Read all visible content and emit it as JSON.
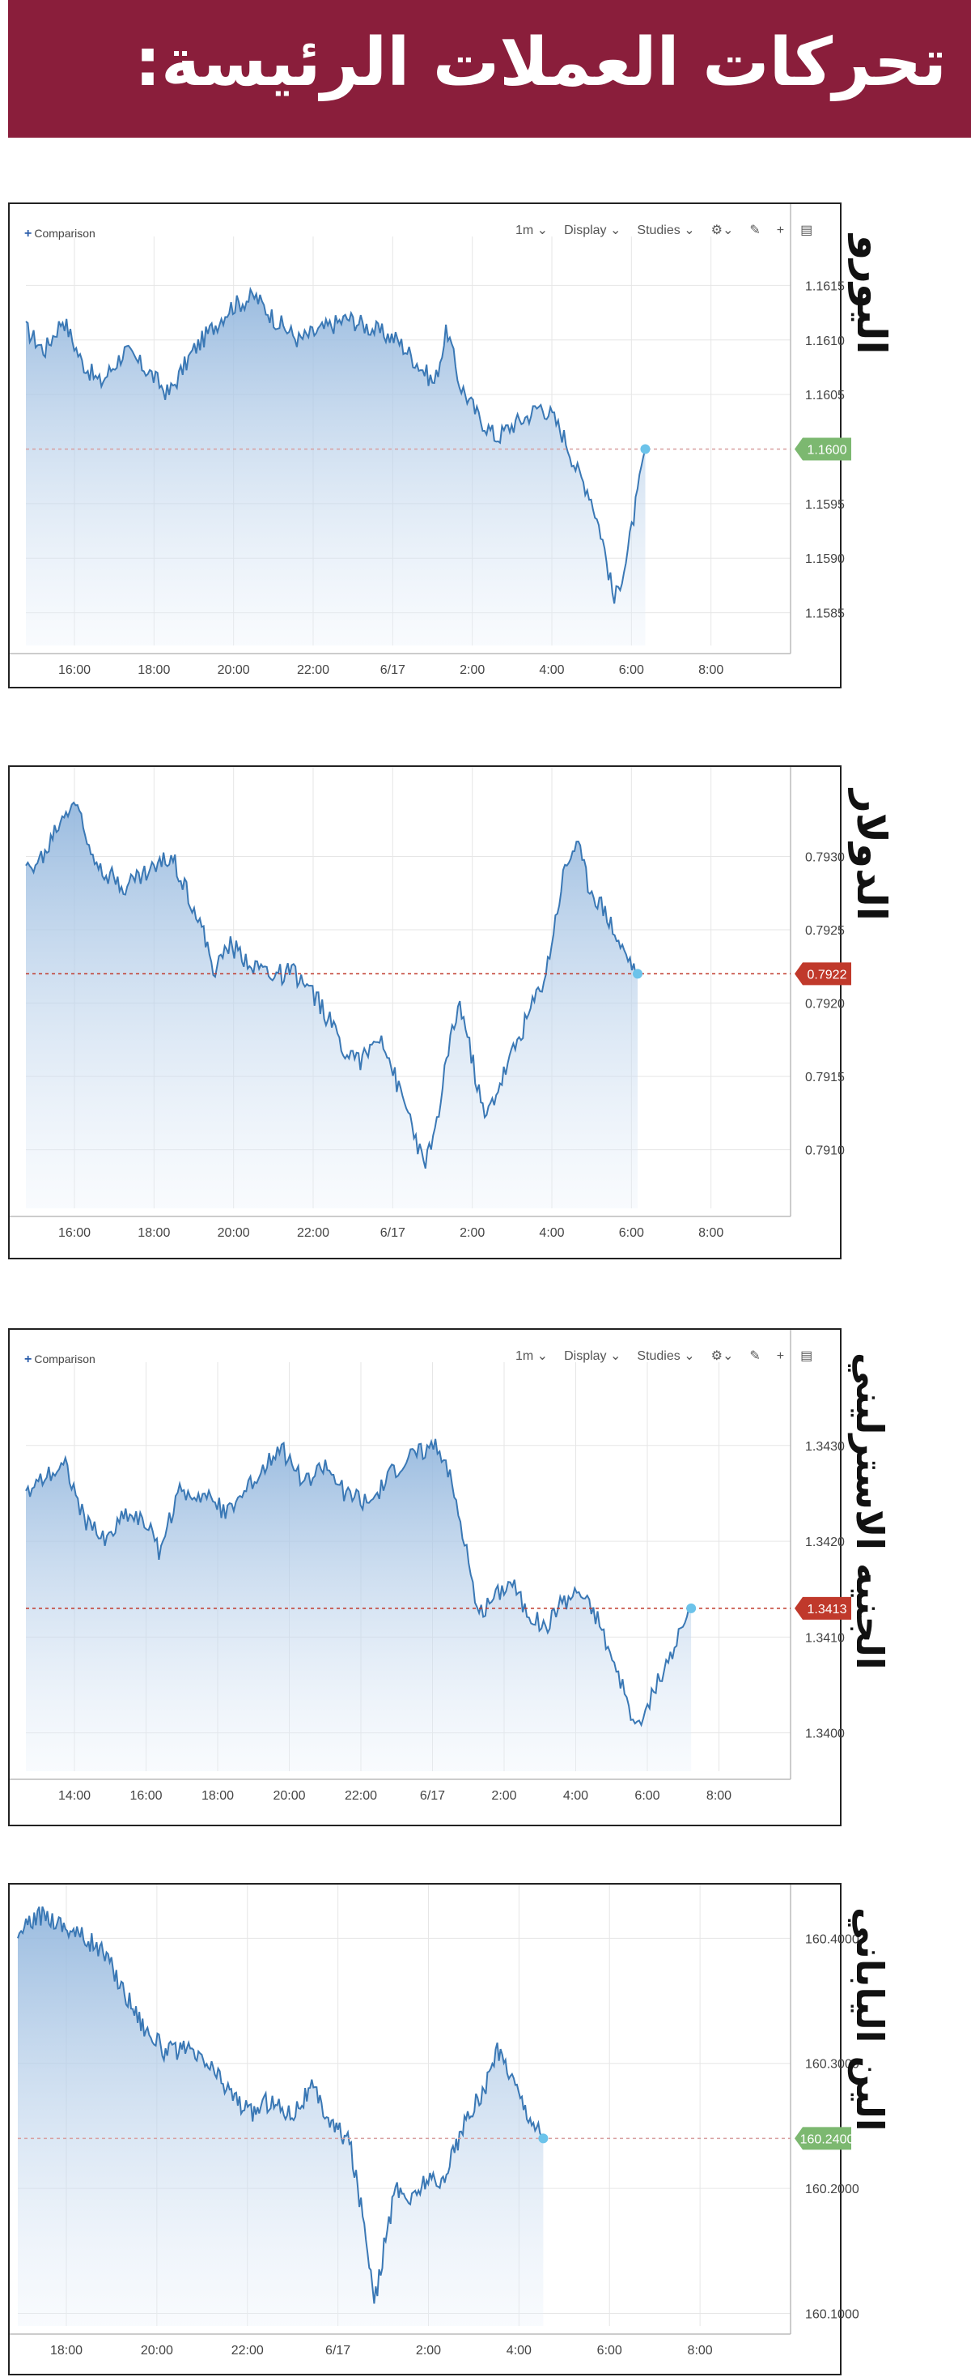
{
  "header": {
    "title": "تحركات العملات الرئيسة:",
    "color": "#8a1e3b"
  },
  "toolbar": {
    "comparison": "Comparison",
    "interval": "1m",
    "display": "Display",
    "studies": "Studies"
  },
  "chart_data": [
    {
      "id": "euro",
      "type": "area",
      "label": "اليورو",
      "x_ticks": [
        "16:00",
        "18:00",
        "20:00",
        "22:00",
        "6/17",
        "2:00",
        "4:00",
        "6:00",
        "8:00"
      ],
      "y_ticks": [
        1.1615,
        1.161,
        1.1605,
        1.16,
        1.1595,
        1.159,
        1.1585
      ],
      "ylim": [
        1.1582,
        1.1618
      ],
      "current_value": "1.1600",
      "current_color": "#7cb870",
      "has_toolbar": true,
      "keypoints": [
        [
          0,
          1.1611
        ],
        [
          0.03,
          1.1609
        ],
        [
          0.06,
          1.1612
        ],
        [
          0.09,
          1.1608
        ],
        [
          0.12,
          1.1606
        ],
        [
          0.16,
          1.1609
        ],
        [
          0.2,
          1.1607
        ],
        [
          0.23,
          1.1605
        ],
        [
          0.27,
          1.1609
        ],
        [
          0.3,
          1.1611
        ],
        [
          0.33,
          1.1613
        ],
        [
          0.37,
          1.1614
        ],
        [
          0.4,
          1.1612
        ],
        [
          0.44,
          1.161
        ],
        [
          0.48,
          1.1611
        ],
        [
          0.52,
          1.1612
        ],
        [
          0.56,
          1.1611
        ],
        [
          0.6,
          1.161
        ],
        [
          0.63,
          1.1608
        ],
        [
          0.66,
          1.1606
        ],
        [
          0.68,
          1.1611
        ],
        [
          0.7,
          1.1606
        ],
        [
          0.73,
          1.1603
        ],
        [
          0.76,
          1.1601
        ],
        [
          0.78,
          1.1602
        ],
        [
          0.81,
          1.1603
        ],
        [
          0.83,
          1.1604
        ],
        [
          0.85,
          1.1603
        ],
        [
          0.87,
          1.1601
        ],
        [
          0.89,
          1.1598
        ],
        [
          0.91,
          1.1596
        ],
        [
          0.93,
          1.1592
        ],
        [
          0.95,
          1.1586
        ],
        [
          0.97,
          1.159
        ],
        [
          0.985,
          1.1595
        ],
        [
          1,
          1.16
        ]
      ]
    },
    {
      "id": "sterling-dollar",
      "type": "area",
      "label": "الدولار",
      "x_ticks": [
        "16:00",
        "18:00",
        "20:00",
        "22:00",
        "6/17",
        "2:00",
        "4:00",
        "6:00",
        "8:00"
      ],
      "y_ticks": [
        0.793,
        0.7925,
        0.792,
        0.7915,
        0.791
      ],
      "ylim": [
        0.7906,
        0.7935
      ],
      "current_value": "0.7922",
      "current_color": "#c0392b",
      "has_toolbar": false,
      "keypoints": [
        [
          0,
          0.7929
        ],
        [
          0.03,
          0.793
        ],
        [
          0.05,
          0.7932
        ],
        [
          0.08,
          0.7934
        ],
        [
          0.1,
          0.7931
        ],
        [
          0.13,
          0.7929
        ],
        [
          0.16,
          0.7928
        ],
        [
          0.2,
          0.7929
        ],
        [
          0.24,
          0.793
        ],
        [
          0.28,
          0.7926
        ],
        [
          0.31,
          0.7922
        ],
        [
          0.33,
          0.7924
        ],
        [
          0.36,
          0.7923
        ],
        [
          0.4,
          0.7922
        ],
        [
          0.44,
          0.7922
        ],
        [
          0.48,
          0.792
        ],
        [
          0.52,
          0.7917
        ],
        [
          0.55,
          0.7916
        ],
        [
          0.58,
          0.7918
        ],
        [
          0.61,
          0.7914
        ],
        [
          0.63,
          0.7912
        ],
        [
          0.65,
          0.7909
        ],
        [
          0.67,
          0.7911
        ],
        [
          0.69,
          0.7917
        ],
        [
          0.71,
          0.792
        ],
        [
          0.73,
          0.7916
        ],
        [
          0.75,
          0.7912
        ],
        [
          0.77,
          0.7914
        ],
        [
          0.79,
          0.7916
        ],
        [
          0.82,
          0.7919
        ],
        [
          0.85,
          0.7922
        ],
        [
          0.88,
          0.7929
        ],
        [
          0.9,
          0.7931
        ],
        [
          0.92,
          0.7928
        ],
        [
          0.95,
          0.7926
        ],
        [
          0.97,
          0.7924
        ],
        [
          1,
          0.7922
        ]
      ]
    },
    {
      "id": "pound",
      "type": "area",
      "label": "الجنيه الاسترليني",
      "x_ticks": [
        "14:00",
        "16:00",
        "18:00",
        "20:00",
        "22:00",
        "6/17",
        "2:00",
        "4:00",
        "6:00",
        "8:00"
      ],
      "y_ticks": [
        1.343,
        1.342,
        1.341,
        1.34
      ],
      "ylim": [
        1.3396,
        1.3437
      ],
      "current_value": "1.3413",
      "current_color": "#c0392b",
      "has_toolbar": true,
      "keypoints": [
        [
          0,
          1.3425
        ],
        [
          0.03,
          1.3427
        ],
        [
          0.06,
          1.3428
        ],
        [
          0.09,
          1.3422
        ],
        [
          0.12,
          1.342
        ],
        [
          0.15,
          1.3423
        ],
        [
          0.18,
          1.3422
        ],
        [
          0.2,
          1.3419
        ],
        [
          0.23,
          1.3425
        ],
        [
          0.27,
          1.3425
        ],
        [
          0.3,
          1.3423
        ],
        [
          0.34,
          1.3426
        ],
        [
          0.38,
          1.343
        ],
        [
          0.42,
          1.3426
        ],
        [
          0.45,
          1.3428
        ],
        [
          0.48,
          1.3425
        ],
        [
          0.52,
          1.3424
        ],
        [
          0.55,
          1.3427
        ],
        [
          0.58,
          1.3429
        ],
        [
          0.61,
          1.343
        ],
        [
          0.63,
          1.3429
        ],
        [
          0.66,
          1.342
        ],
        [
          0.68,
          1.3412
        ],
        [
          0.7,
          1.3414
        ],
        [
          0.73,
          1.3416
        ],
        [
          0.75,
          1.3413
        ],
        [
          0.78,
          1.3411
        ],
        [
          0.8,
          1.3413
        ],
        [
          0.83,
          1.3415
        ],
        [
          0.86,
          1.3412
        ],
        [
          0.88,
          1.3408
        ],
        [
          0.9,
          1.3404
        ],
        [
          0.92,
          1.34
        ],
        [
          0.94,
          1.3404
        ],
        [
          0.97,
          1.3408
        ],
        [
          1,
          1.3413
        ]
      ]
    },
    {
      "id": "yen",
      "type": "area",
      "label": "الين الياباني",
      "x_ticks": [
        "18:00",
        "20:00",
        "22:00",
        "6/17",
        "2:00",
        "4:00",
        "6:00",
        "8:00"
      ],
      "y_ticks": [
        160.4,
        160.3,
        160.24,
        160.2,
        160.1
      ],
      "ylim": [
        160.09,
        160.43
      ],
      "current_value": "160.2400",
      "current_color": "#7cb870",
      "has_toolbar": false,
      "keypoints": [
        [
          0,
          160.4
        ],
        [
          0.02,
          160.41
        ],
        [
          0.05,
          160.42
        ],
        [
          0.09,
          160.41
        ],
        [
          0.13,
          160.4
        ],
        [
          0.16,
          160.39
        ],
        [
          0.2,
          160.36
        ],
        [
          0.24,
          160.33
        ],
        [
          0.28,
          160.31
        ],
        [
          0.32,
          160.31
        ],
        [
          0.36,
          160.3
        ],
        [
          0.4,
          160.28
        ],
        [
          0.44,
          160.26
        ],
        [
          0.48,
          160.27
        ],
        [
          0.52,
          160.26
        ],
        [
          0.56,
          160.28
        ],
        [
          0.6,
          160.25
        ],
        [
          0.63,
          160.24
        ],
        [
          0.66,
          160.17
        ],
        [
          0.68,
          160.11
        ],
        [
          0.7,
          160.16
        ],
        [
          0.72,
          160.2
        ],
        [
          0.75,
          160.19
        ],
        [
          0.78,
          160.21
        ],
        [
          0.8,
          160.2
        ],
        [
          0.83,
          160.23
        ],
        [
          0.86,
          160.26
        ],
        [
          0.89,
          160.28
        ],
        [
          0.91,
          160.31
        ],
        [
          0.93,
          160.3
        ],
        [
          0.96,
          160.27
        ],
        [
          1,
          160.24
        ]
      ]
    }
  ]
}
